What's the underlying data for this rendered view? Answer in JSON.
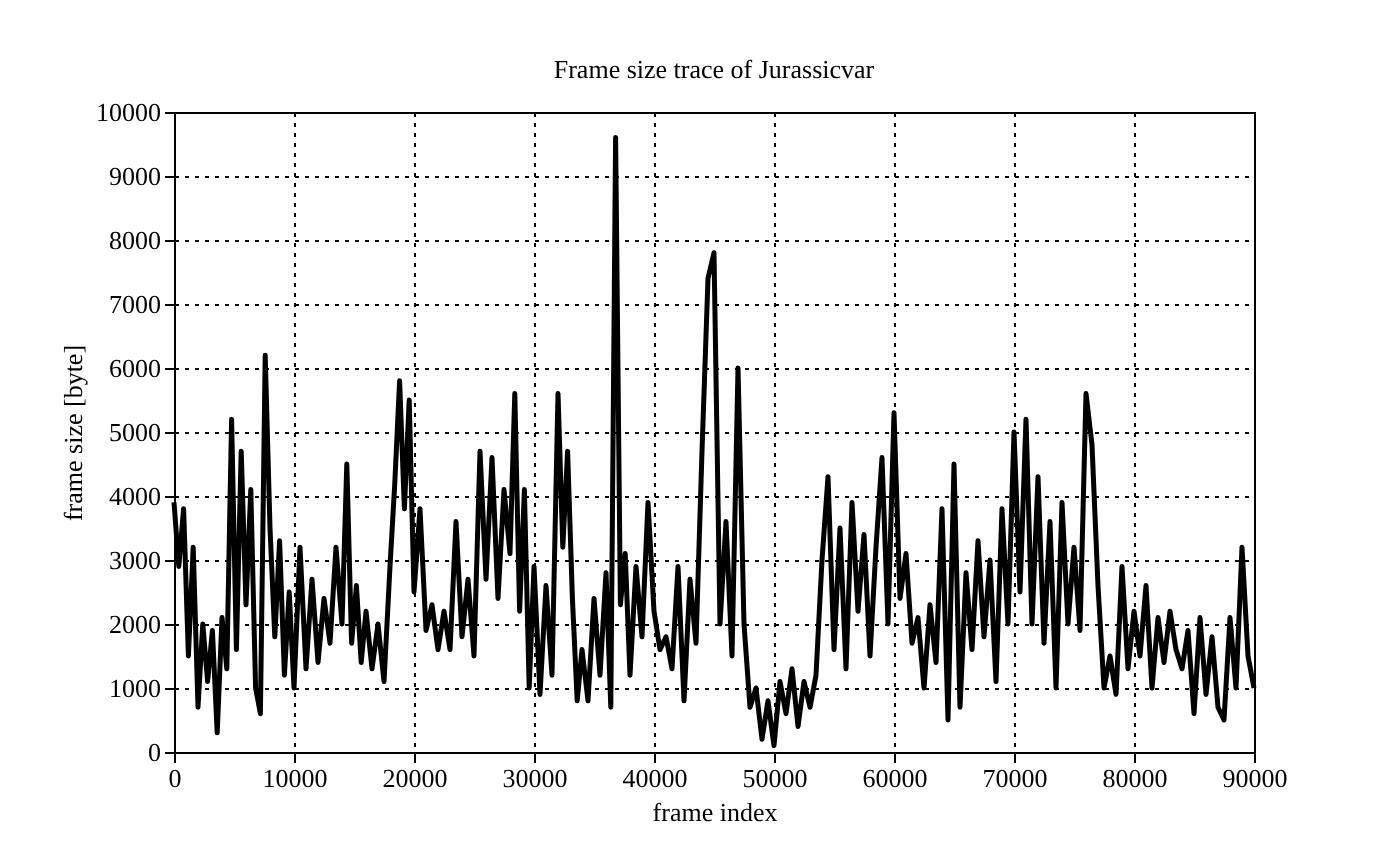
{
  "chart_data": {
    "type": "line",
    "title": "Frame size trace of Jurassicvar",
    "xlabel": "frame index",
    "ylabel": "frame size [byte]",
    "color": "#000000",
    "grid": true,
    "xlim": [
      0,
      90000
    ],
    "ylim": [
      0,
      10000
    ],
    "xticks": [
      0,
      10000,
      20000,
      30000,
      40000,
      50000,
      60000,
      70000,
      80000,
      90000
    ],
    "yticks": [
      0,
      1000,
      2000,
      3000,
      4000,
      5000,
      6000,
      7000,
      8000,
      9000,
      10000
    ],
    "x": [
      0,
      400,
      800,
      1200,
      1600,
      2000,
      2400,
      2800,
      3200,
      3600,
      4000,
      4400,
      4800,
      5200,
      5600,
      6000,
      6400,
      6800,
      7200,
      7600,
      8000,
      8400,
      8800,
      9200,
      9600,
      10000,
      10500,
      11000,
      11500,
      12000,
      12500,
      13000,
      13500,
      14000,
      14400,
      14800,
      15200,
      15600,
      16000,
      16500,
      17000,
      17500,
      18000,
      18400,
      18800,
      19200,
      19600,
      20000,
      20500,
      21000,
      21500,
      22000,
      22500,
      23000,
      23500,
      24000,
      24500,
      25000,
      25500,
      26000,
      26500,
      27000,
      27500,
      28000,
      28400,
      28800,
      29200,
      29600,
      30000,
      30500,
      31000,
      31500,
      32000,
      32400,
      32800,
      33200,
      33600,
      34000,
      34500,
      35000,
      35500,
      36000,
      36400,
      36800,
      37200,
      37600,
      38000,
      38500,
      39000,
      39500,
      40000,
      40500,
      41000,
      41500,
      42000,
      42500,
      43000,
      43500,
      44000,
      44500,
      45000,
      45500,
      46000,
      46500,
      47000,
      47500,
      48000,
      48500,
      49000,
      49500,
      50000,
      50500,
      51000,
      51500,
      52000,
      52500,
      53000,
      53500,
      54000,
      54500,
      55000,
      55500,
      56000,
      56500,
      57000,
      57500,
      58000,
      58500,
      59000,
      59500,
      60000,
      60500,
      61000,
      61500,
      62000,
      62500,
      63000,
      63500,
      64000,
      64500,
      65000,
      65500,
      66000,
      66500,
      67000,
      67500,
      68000,
      68500,
      69000,
      69500,
      70000,
      70500,
      71000,
      71500,
      72000,
      72500,
      73000,
      73500,
      74000,
      74500,
      75000,
      75500,
      76000,
      76500,
      77000,
      77500,
      78000,
      78500,
      79000,
      79500,
      80000,
      80500,
      81000,
      81500,
      82000,
      82500,
      83000,
      83500,
      84000,
      84500,
      85000,
      85500,
      86000,
      86500,
      87000,
      87500,
      88000,
      88500,
      89000,
      89500,
      90000
    ],
    "values": [
      3900,
      2900,
      3800,
      1500,
      3200,
      700,
      2000,
      1100,
      1900,
      300,
      2100,
      1300,
      5200,
      1600,
      4700,
      2300,
      4100,
      1000,
      600,
      6200,
      3500,
      1800,
      3300,
      1200,
      2500,
      1000,
      3200,
      1300,
      2700,
      1400,
      2400,
      1700,
      3200,
      2000,
      4500,
      1700,
      2600,
      1400,
      2200,
      1300,
      2000,
      1100,
      2900,
      4200,
      5800,
      3800,
      5500,
      2500,
      3800,
      1900,
      2300,
      1600,
      2200,
      1600,
      3600,
      1800,
      2700,
      1500,
      4700,
      2700,
      4600,
      2400,
      4100,
      3100,
      5600,
      2200,
      4100,
      1000,
      2900,
      900,
      2600,
      1200,
      5600,
      3200,
      4700,
      2400,
      800,
      1600,
      800,
      2400,
      1200,
      2800,
      700,
      9600,
      2300,
      3100,
      1200,
      2900,
      1800,
      3900,
      2200,
      1600,
      1800,
      1300,
      2900,
      800,
      2700,
      1700,
      4700,
      7400,
      7800,
      2000,
      3600,
      1500,
      6000,
      2000,
      700,
      1000,
      200,
      800,
      100,
      1100,
      600,
      1300,
      400,
      1100,
      700,
      1200,
      3000,
      4300,
      1600,
      3500,
      1300,
      3900,
      2200,
      3400,
      1500,
      3200,
      4600,
      2000,
      5300,
      2400,
      3100,
      1700,
      2100,
      1000,
      2300,
      1400,
      3800,
      500,
      4500,
      700,
      2800,
      1600,
      3300,
      1800,
      3000,
      1100,
      3800,
      2000,
      5000,
      2500,
      5200,
      2000,
      4300,
      1700,
      3600,
      1000,
      3900,
      2000,
      3200,
      1900,
      5600,
      4800,
      2600,
      1000,
      1500,
      900,
      2900,
      1300,
      2200,
      1500,
      2600,
      1000,
      2100,
      1400,
      2200,
      1600,
      1300,
      1900,
      600,
      2100,
      900,
      1800,
      700,
      500,
      2100,
      1000,
      3200,
      1500,
      1000
    ]
  }
}
